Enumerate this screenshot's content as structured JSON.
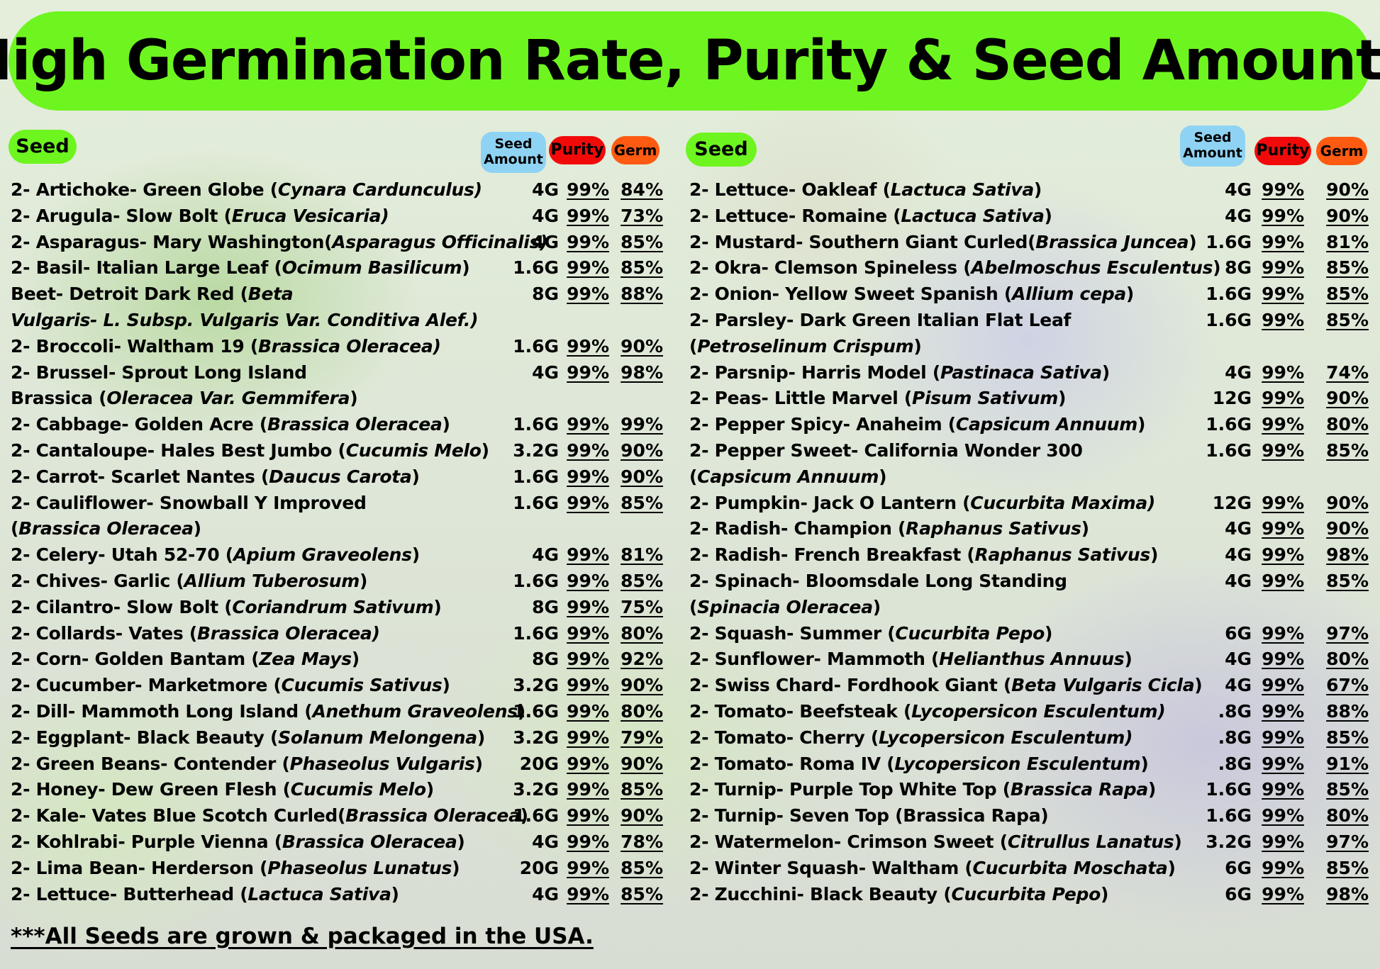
{
  "title": "High Germination Rate, Purity & Seed Amounts",
  "headers": {
    "seed": "Seed",
    "amount_line1": "Seed",
    "amount_line2": "Amount",
    "purity": "Purity",
    "germ": "Germ"
  },
  "left_rows": [
    {
      "name": "2- Artichoke- Green Globe (",
      "sci": "Cynara Cardunculus)",
      "after": "",
      "amount": "4G",
      "purity": "99%",
      "germ": "84%"
    },
    {
      "name": "2- Arugula- Slow Bolt (",
      "sci": "Eruca Vesicaria)",
      "after": "",
      "amount": "4G",
      "purity": "99%",
      "germ": "73%"
    },
    {
      "name": "2- Asparagus- Mary Washington(",
      "sci": "Asparagus Officinalis)",
      "after": "",
      "amount": "4G",
      "purity": "99%",
      "germ": "85%"
    },
    {
      "name": "2- Basil- Italian Large Leaf (",
      "sci": "Ocimum Basilicum",
      "after": ")",
      "amount": "1.6G",
      "purity": "99%",
      "germ": "85%"
    },
    {
      "name": "Beet- Detroit Dark Red (",
      "sci": "Beta",
      "after": "",
      "line2_sci": "Vulgaris- L. Subsp. Vulgaris Var. Conditiva Alef.)",
      "amount": "8G",
      "purity": "99%",
      "germ": "88%"
    },
    {
      "name": "2- Broccoli- Waltham 19 (",
      "sci": "Brassica Oleracea)",
      "after": "",
      "amount": "1.6G",
      "purity": "99%",
      "germ": "90%"
    },
    {
      "name": "2- Brussel- Sprout Long Island",
      "sci": "",
      "after": "",
      "line2_pre": "Brassica (",
      "line2_sci": "Oleracea Var. Gemmifera",
      "line2_post": ")",
      "amount": "4G",
      "purity": "99%",
      "germ": "98%"
    },
    {
      "name": "2- Cabbage- Golden Acre (",
      "sci": "Brassica Oleracea",
      "after": ")",
      "amount": "1.6G",
      "purity": "99%",
      "germ": "99%"
    },
    {
      "name": "2- Cantaloupe- Hales Best Jumbo (",
      "sci": "Cucumis Melo",
      "after": ")",
      "amount": "3.2G",
      "purity": "99%",
      "germ": "90%"
    },
    {
      "name": "2- Carrot- Scarlet Nantes (",
      "sci": "Daucus Carota",
      "after": ")",
      "amount": "1.6G",
      "purity": "99%",
      "germ": "90%"
    },
    {
      "name": "2- Cauliflower- Snowball Y Improved",
      "sci": "",
      "after": "",
      "line2_pre": "(",
      "line2_sci": "Brassica Oleracea",
      "line2_post": ")",
      "amount": "1.6G",
      "purity": "99%",
      "germ": "85%"
    },
    {
      "name": "2- Celery- Utah 52-70 (",
      "sci": "Apium Graveolens",
      "after": ")",
      "amount": "4G",
      "purity": "99%",
      "germ": "81%"
    },
    {
      "name": "2- Chives- Garlic (",
      "sci": "Allium Tuberosum",
      "after": ")",
      "amount": "1.6G",
      "purity": "99%",
      "germ": "85%"
    },
    {
      "name": "2- Cilantro- Slow Bolt (",
      "sci": "Coriandrum Sativum",
      "after": ")",
      "amount": "8G",
      "purity": "99%",
      "germ": "75%"
    },
    {
      "name": "2- Collards- Vates (",
      "sci": "Brassica Oleracea)",
      "after": "",
      "amount": "1.6G",
      "purity": "99%",
      "germ": "80%"
    },
    {
      "name": "2- Corn- Golden Bantam (",
      "sci": "Zea Mays",
      "after": ")",
      "amount": "8G",
      "purity": "99%",
      "germ": "92%"
    },
    {
      "name": "2- Cucumber- Marketmore (",
      "sci": "Cucumis Sativus",
      "after": ")",
      "amount": "3.2G",
      "purity": "99%",
      "germ": "90%"
    },
    {
      "name": "2- Dill- Mammoth Long Island (",
      "sci": "Anethum Graveolens",
      "after": ")",
      "amount": "1.6G",
      "purity": "99%",
      "germ": "80%"
    },
    {
      "name": "2- Eggplant- Black Beauty (",
      "sci": "Solanum Melongena",
      "after": ")",
      "amount": "3.2G",
      "purity": "99%",
      "germ": "79%"
    },
    {
      "name": "2- Green Beans- Contender (",
      "sci": "Phaseolus Vulgaris",
      "after": ")",
      "amount": "20G",
      "purity": "99%",
      "germ": "90%"
    },
    {
      "name": "2- Honey- Dew Green Flesh (",
      "sci": "Cucumis Melo",
      "after": ")",
      "amount": "3.2G",
      "purity": "99%",
      "germ": "85%"
    },
    {
      "name": "2- Kale- Vates Blue Scotch Curled(",
      "sci": "Brassica Oleracea",
      "after": ")",
      "amount": "1.6G",
      "purity": "99%",
      "germ": "90%"
    },
    {
      "name": "2- Kohlrabi- Purple Vienna (",
      "sci": "Brassica Oleracea",
      "after": ")",
      "amount": "4G",
      "purity": "99%",
      "germ": "78%"
    },
    {
      "name": "2- Lima Bean- Herderson (",
      "sci": "Phaseolus Lunatus",
      "after": ")",
      "amount": "20G",
      "purity": "99%",
      "germ": "85%"
    },
    {
      "name": "2- Lettuce- Butterhead (",
      "sci": "Lactuca Sativa",
      "after": ")",
      "amount": "4G",
      "purity": "99%",
      "germ": "85%"
    }
  ],
  "right_rows": [
    {
      "name": "2- Lettuce- Oakleaf (",
      "sci": "Lactuca Sativa",
      "after": ")",
      "amount": "4G",
      "purity": "99%",
      "germ": "90%"
    },
    {
      "name": "2- Lettuce- Romaine (",
      "sci": "Lactuca Sativa",
      "after": ")",
      "amount": "4G",
      "purity": "99%",
      "germ": "90%"
    },
    {
      "name": "2- Mustard-  Southern Giant Curled(",
      "sci": "Brassica Juncea",
      "after": ")",
      "amount": "1.6G",
      "purity": "99%",
      "germ": "81%"
    },
    {
      "name": "2- Okra- Clemson Spineless (",
      "sci": "Abelmoschus Esculentus",
      "after": ")",
      "amount": "8G",
      "purity": "99%",
      "germ": "85%"
    },
    {
      "name": "2- Onion- Yellow Sweet Spanish (",
      "sci": "Allium cepa",
      "after": ")",
      "amount": "1.6G",
      "purity": "99%",
      "germ": "85%"
    },
    {
      "name": "2- Parsley- Dark Green Italian Flat Leaf",
      "sci": "",
      "after": "",
      "line2_pre": "(",
      "line2_sci": "Petroselinum Crispum",
      "line2_post": ")",
      "amount": "1.6G",
      "purity": "99%",
      "germ": "85%"
    },
    {
      "name": "2- Parsnip- Harris Model (",
      "sci": "Pastinaca Sativa",
      "after": ")",
      "amount": "4G",
      "purity": "99%",
      "germ": "74%"
    },
    {
      "name": "2- Peas- Little Marvel (",
      "sci": "Pisum Sativum",
      "after": ")",
      "amount": "12G",
      "purity": "99%",
      "germ": "90%"
    },
    {
      "name": "2- Pepper Spicy- Anaheim (",
      "sci": "Capsicum Annuum",
      "after": ")",
      "amount": "1.6G",
      "purity": "99%",
      "germ": "80%"
    },
    {
      "name": "2- Pepper Sweet- California Wonder 300",
      "sci": "",
      "after": "",
      "line2_pre": "(",
      "line2_sci": "Capsicum Annuum",
      "line2_post": ")",
      "amount": "1.6G",
      "purity": "99%",
      "germ": "85%"
    },
    {
      "name": "2- Pumpkin- Jack O Lantern (",
      "sci": "Cucurbita Maxima)",
      "after": "",
      "amount": "12G",
      "purity": "99%",
      "germ": "90%"
    },
    {
      "name": "2- Radish- Champion (",
      "sci": "Raphanus Sativus",
      "after": ")",
      "amount": "4G",
      "purity": "99%",
      "germ": "90%"
    },
    {
      "name": "2- Radish- French Breakfast (",
      "sci": "Raphanus Sativus",
      "after": ")",
      "amount": "4G",
      "purity": "99%",
      "germ": "98%"
    },
    {
      "name": "2- Spinach- Bloomsdale Long Standing",
      "sci": "",
      "after": "",
      "line2_pre": "(",
      "line2_sci": "Spinacia Oleracea",
      "line2_post": ")",
      "amount": "4G",
      "purity": "99%",
      "germ": "85%"
    },
    {
      "name": "2- Squash- Summer (",
      "sci": "Cucurbita Pepo",
      "after": ")",
      "amount": "6G",
      "purity": "99%",
      "germ": "97%"
    },
    {
      "name": "2- Sunflower- Mammoth (",
      "sci": "Helianthus Annuus",
      "after": ")",
      "amount": "4G",
      "purity": "99%",
      "germ": "80%"
    },
    {
      "name": "2- Swiss Chard- Fordhook Giant (",
      "sci": "Beta Vulgaris Cicla",
      "after": ")",
      "amount": "4G",
      "purity": "99%",
      "germ": "67%"
    },
    {
      "name": "2- Tomato- Beefsteak (",
      "sci": "Lycopersicon Esculentum)",
      "after": "",
      "amount": ".8G",
      "purity": "99%",
      "germ": "88%"
    },
    {
      "name": "2- Tomato- Cherry (",
      "sci": "Lycopersicon Esculentum)",
      "after": "",
      "amount": ".8G",
      "purity": "99%",
      "germ": "85%"
    },
    {
      "name": "2- Tomato- Roma IV  (",
      "sci": "Lycopersicon Esculentum",
      "after": ")",
      "amount": ".8G",
      "purity": "99%",
      "germ": "91%"
    },
    {
      "name": "2- Turnip- Purple Top White Top (",
      "sci": "Brassica Rapa",
      "after": ")",
      "amount": "1.6G",
      "purity": "99%",
      "germ": "85%"
    },
    {
      "name": "2- Turnip- Seven Top (Brassica Rapa)",
      "sci": "",
      "after": "",
      "amount": "1.6G",
      "purity": "99%",
      "germ": "80%"
    },
    {
      "name": "2- Watermelon- Crimson Sweet (",
      "sci": "Citrullus Lanatus",
      "after": ")",
      "amount": "3.2G",
      "purity": "99%",
      "germ": "97%"
    },
    {
      "name": "2- Winter Squash- Waltham (",
      "sci": "Cucurbita Moschata",
      "after": ")",
      "amount": "6G",
      "purity": "99%",
      "germ": "85%"
    },
    {
      "name": "2- Zucchini-  Black Beauty (",
      "sci": "Cucurbita Pepo",
      "after": ")",
      "amount": "6G",
      "purity": "99%",
      "germ": "98%"
    }
  ],
  "footer": "***All Seeds are grown & packaged in the USA."
}
